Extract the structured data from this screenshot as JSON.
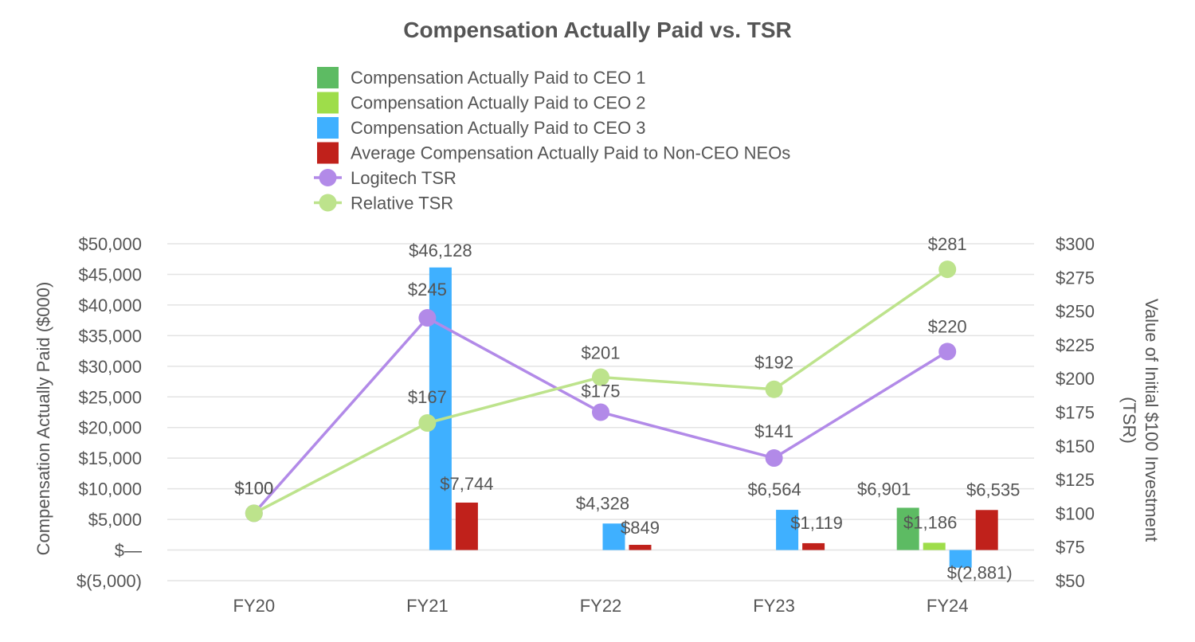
{
  "chart_data": {
    "type": "bar",
    "title": "Compensation Actually Paid vs. TSR",
    "categories": [
      "FY20",
      "FY21",
      "FY22",
      "FY23",
      "FY24"
    ],
    "y_left": {
      "label": "Compensation Actually Paid ($000)",
      "range": [
        -5000,
        50000
      ],
      "ticks": [
        -5000,
        0,
        5000,
        10000,
        15000,
        20000,
        25000,
        30000,
        35000,
        40000,
        45000,
        50000
      ],
      "tick_labels": [
        "$(5,000)",
        "$—",
        "$5,000",
        "$10,000",
        "$15,000",
        "$20,000",
        "$25,000",
        "$30,000",
        "$35,000",
        "$40,000",
        "$45,000",
        "$50,000"
      ]
    },
    "y_right": {
      "label_line1": "Value of Initial $100 Investment",
      "label_line2": "(TSR)",
      "range": [
        50,
        300
      ],
      "ticks": [
        50,
        75,
        100,
        125,
        150,
        175,
        200,
        225,
        250,
        275,
        300
      ],
      "tick_labels": [
        "$50",
        "$75",
        "$100",
        "$125",
        "$150",
        "$175",
        "$200",
        "$225",
        "$250",
        "$275",
        "$300"
      ]
    },
    "bar_series": [
      {
        "name": "Compensation Actually Paid to CEO 1",
        "color": "#5dbb63",
        "values": [
          null,
          null,
          null,
          null,
          6901
        ],
        "labels": [
          "",
          "",
          "",
          "",
          "$6,901"
        ]
      },
      {
        "name": "Compensation Actually Paid to CEO 2",
        "color": "#9edd4a",
        "values": [
          null,
          null,
          null,
          null,
          1186
        ],
        "labels": [
          "",
          "",
          "",
          "",
          "$1,186"
        ]
      },
      {
        "name": "Compensation Actually Paid to CEO 3",
        "color": "#3fb0ff",
        "values": [
          null,
          46128,
          4328,
          6564,
          -2881
        ],
        "labels": [
          "",
          "$46,128",
          "$4,328",
          "$6,564",
          "$(2,881)"
        ]
      },
      {
        "name": "Average Compensation Actually Paid to Non-CEO NEOs",
        "color": "#c0211b",
        "values": [
          null,
          7744,
          849,
          1119,
          6535
        ],
        "labels": [
          "",
          "$7,744",
          "$849",
          "$1,119",
          "$6,535"
        ]
      }
    ],
    "line_series": [
      {
        "name": "Logitech TSR",
        "color": "#b28ae8",
        "values": [
          100,
          245,
          175,
          141,
          220
        ],
        "labels": [
          "$100",
          "$245",
          "$175",
          "$141",
          "$220"
        ]
      },
      {
        "name": "Relative TSR",
        "color": "#bde38c",
        "values": [
          100,
          167,
          201,
          192,
          281
        ],
        "labels": [
          "$100",
          "$167",
          "$201",
          "$192",
          "$281"
        ]
      }
    ]
  }
}
